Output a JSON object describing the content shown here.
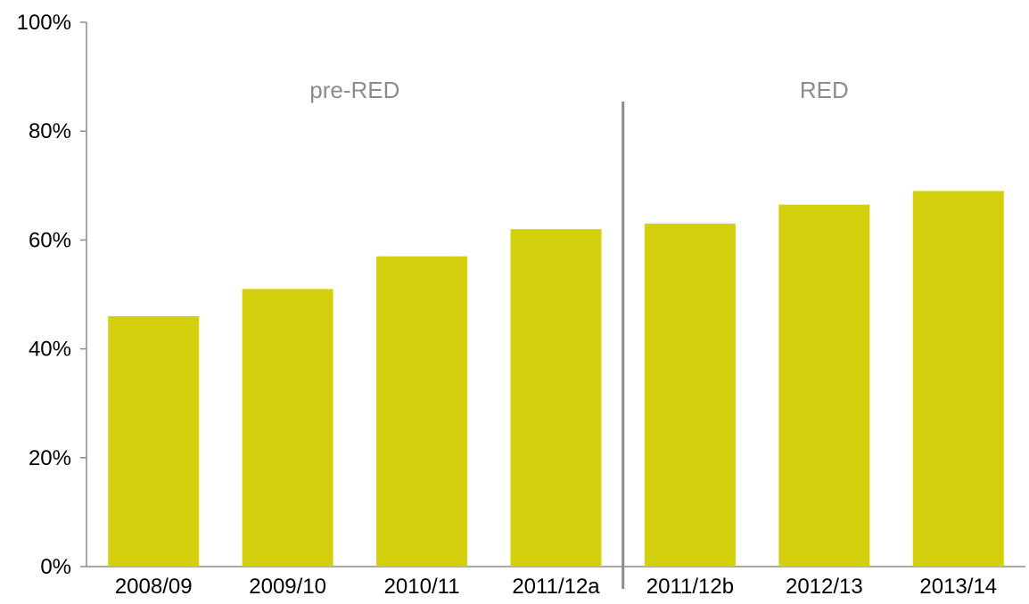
{
  "chart_data": {
    "type": "bar",
    "categories": [
      "2008/09",
      "2009/10",
      "2010/11",
      "2011/12a",
      "2011/12b",
      "2012/13",
      "2013/14"
    ],
    "values": [
      46,
      51,
      57,
      62,
      63,
      66.5,
      69
    ],
    "title": "",
    "xlabel": "",
    "ylabel": "",
    "ylim": [
      0,
      100
    ],
    "yticks": [
      0,
      20,
      40,
      60,
      80,
      100
    ],
    "ytick_labels": [
      "0%",
      "20%",
      "40%",
      "60%",
      "80%",
      "100%"
    ],
    "grid": false,
    "legend": "none",
    "bar_color": "#d4d00d",
    "axis_color": "#8c8c8c",
    "regions": [
      {
        "label": "pre-RED",
        "from_category": "2008/09",
        "to_category": "2011/12a"
      },
      {
        "label": "RED",
        "from_category": "2011/12b",
        "to_category": "2013/14"
      }
    ],
    "divider_between": [
      "2011/12a",
      "2011/12b"
    ]
  }
}
